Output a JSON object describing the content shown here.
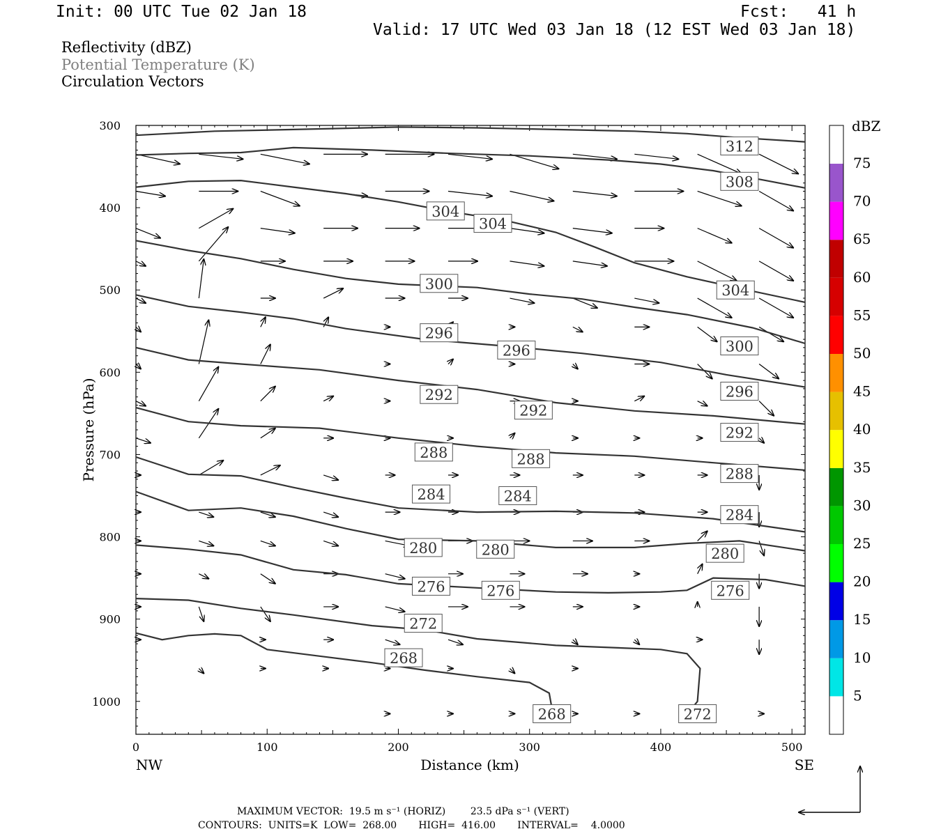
{
  "header": {
    "init": "Init: 00 UTC Tue 02 Jan 18",
    "fcst": "Fcst:   41 h",
    "valid": "Valid: 17 UTC Wed 03 Jan 18 (12 EST Wed 03 Jan 18)"
  },
  "legend": {
    "line1": "Reflectivity (dBZ)",
    "line2": "Potential Temperature (K)",
    "line3": "Circulation Vectors"
  },
  "footer": {
    "line1": "MAXIMUM VECTOR:  19.5 m s⁻¹ (HORIZ)        23.5 dPa s⁻¹ (VERT)",
    "line2": "CONTOURS:  UNITS=K  LOW=  268.00       HIGH=  416.00       INTERVAL=    4.0000"
  },
  "colors": {
    "contour": "#333333",
    "label_gray": "#808080",
    "frame": "#000000"
  },
  "chart_data": {
    "type": "line",
    "title": "",
    "xlabel": "Distance (km)",
    "ylabel": "Pressure (hPa)",
    "xlim": [
      0,
      510
    ],
    "ylim": [
      300,
      1040
    ],
    "y_inverted": true,
    "x_ticks": [
      0,
      100,
      200,
      300,
      400,
      500
    ],
    "y_ticks": [
      300,
      400,
      500,
      600,
      700,
      800,
      900,
      1000
    ],
    "x_end_labels": {
      "left": "NW",
      "right": "SE"
    },
    "colorbar": {
      "unit": "dBZ",
      "levels": [
        5,
        10,
        15,
        20,
        25,
        30,
        35,
        40,
        45,
        50,
        55,
        60,
        65,
        70,
        75
      ],
      "colors": [
        "#ffffff",
        "#00e6e6",
        "#0099e6",
        "#0000e6",
        "#00ff00",
        "#00c800",
        "#009600",
        "#ffff00",
        "#e6c000",
        "#ff9000",
        "#ff0000",
        "#d60000",
        "#c00000",
        "#ff00ff",
        "#9955cc",
        "#ffffff"
      ]
    },
    "contours": [
      {
        "name": "312",
        "points": [
          [
            0,
            312
          ],
          [
            60,
            307
          ],
          [
            120,
            305
          ],
          [
            200,
            302
          ],
          [
            260,
            303
          ],
          [
            320,
            305
          ],
          [
            380,
            307
          ],
          [
            420,
            310
          ],
          [
            460,
            315
          ],
          [
            510,
            320
          ]
        ],
        "labels": [
          [
            460,
            325
          ]
        ]
      },
      {
        "name": "308",
        "points": [
          [
            0,
            336
          ],
          [
            40,
            334
          ],
          [
            80,
            333
          ],
          [
            120,
            327
          ],
          [
            180,
            330
          ],
          [
            240,
            334
          ],
          [
            300,
            337
          ],
          [
            360,
            342
          ],
          [
            400,
            347
          ],
          [
            440,
            355
          ],
          [
            480,
            367
          ],
          [
            510,
            376
          ]
        ],
        "labels": [
          [
            460,
            368
          ]
        ]
      },
      {
        "name": "304",
        "points": [
          [
            0,
            375
          ],
          [
            40,
            368
          ],
          [
            80,
            367
          ],
          [
            120,
            375
          ],
          [
            160,
            383
          ],
          [
            200,
            393
          ],
          [
            240,
            405
          ],
          [
            280,
            415
          ],
          [
            320,
            430
          ],
          [
            350,
            448
          ],
          [
            380,
            467
          ],
          [
            420,
            484
          ],
          [
            460,
            498
          ],
          [
            510,
            515
          ]
        ],
        "labels": [
          [
            236,
            404
          ],
          [
            272,
            419
          ],
          [
            457,
            500
          ]
        ]
      },
      {
        "name": "300",
        "points": [
          [
            0,
            440
          ],
          [
            40,
            452
          ],
          [
            80,
            462
          ],
          [
            120,
            475
          ],
          [
            160,
            486
          ],
          [
            200,
            493
          ],
          [
            260,
            497
          ],
          [
            300,
            505
          ],
          [
            340,
            511
          ],
          [
            380,
            521
          ],
          [
            420,
            530
          ],
          [
            470,
            546
          ],
          [
            510,
            565
          ]
        ],
        "labels": [
          [
            231,
            492
          ],
          [
            460,
            568
          ]
        ]
      },
      {
        "name": "296",
        "points": [
          [
            0,
            506
          ],
          [
            40,
            520
          ],
          [
            80,
            527
          ],
          [
            120,
            535
          ],
          [
            160,
            547
          ],
          [
            220,
            560
          ],
          [
            280,
            568
          ],
          [
            340,
            577
          ],
          [
            400,
            588
          ],
          [
            450,
            603
          ],
          [
            510,
            618
          ]
        ],
        "labels": [
          [
            231,
            552
          ],
          [
            290,
            573
          ],
          [
            460,
            623
          ]
        ]
      },
      {
        "name": "292",
        "points": [
          [
            0,
            570
          ],
          [
            40,
            585
          ],
          [
            80,
            590
          ],
          [
            140,
            597
          ],
          [
            200,
            610
          ],
          [
            260,
            621
          ],
          [
            320,
            637
          ],
          [
            380,
            647
          ],
          [
            440,
            653
          ],
          [
            510,
            663
          ]
        ],
        "labels": [
          [
            231,
            627
          ],
          [
            303,
            646
          ],
          [
            460,
            673
          ]
        ]
      },
      {
        "name": "288",
        "points": [
          [
            0,
            643
          ],
          [
            40,
            660
          ],
          [
            80,
            665
          ],
          [
            140,
            668
          ],
          [
            200,
            680
          ],
          [
            260,
            690
          ],
          [
            320,
            698
          ],
          [
            380,
            702
          ],
          [
            440,
            710
          ],
          [
            510,
            719
          ]
        ],
        "labels": [
          [
            227,
            697
          ],
          [
            301,
            705
          ],
          [
            460,
            723
          ]
        ]
      },
      {
        "name": "284",
        "points": [
          [
            0,
            703
          ],
          [
            40,
            724
          ],
          [
            80,
            726
          ],
          [
            120,
            740
          ],
          [
            160,
            753
          ],
          [
            200,
            765
          ],
          [
            260,
            770
          ],
          [
            320,
            769
          ],
          [
            380,
            771
          ],
          [
            440,
            778
          ],
          [
            510,
            794
          ]
        ],
        "labels": [
          [
            225,
            748
          ],
          [
            291,
            750
          ],
          [
            460,
            773
          ]
        ]
      },
      {
        "name": "280",
        "points": [
          [
            0,
            745
          ],
          [
            40,
            768
          ],
          [
            80,
            765
          ],
          [
            120,
            775
          ],
          [
            160,
            790
          ],
          [
            200,
            803
          ],
          [
            260,
            805
          ],
          [
            320,
            813
          ],
          [
            380,
            813
          ],
          [
            420,
            808
          ],
          [
            460,
            805
          ],
          [
            510,
            817
          ]
        ],
        "labels": [
          [
            219,
            813
          ],
          [
            274,
            815
          ],
          [
            449,
            820
          ]
        ]
      },
      {
        "name": "276",
        "points": [
          [
            0,
            810
          ],
          [
            40,
            815
          ],
          [
            80,
            822
          ],
          [
            120,
            840
          ],
          [
            160,
            846
          ],
          [
            200,
            857
          ],
          [
            260,
            862
          ],
          [
            320,
            867
          ],
          [
            360,
            868
          ],
          [
            400,
            867
          ],
          [
            420,
            865
          ],
          [
            440,
            850
          ],
          [
            480,
            852
          ],
          [
            510,
            860
          ]
        ],
        "labels": [
          [
            225,
            860
          ],
          [
            278,
            865
          ],
          [
            453,
            865
          ]
        ]
      },
      {
        "name": "272",
        "points": [
          [
            0,
            875
          ],
          [
            40,
            877
          ],
          [
            80,
            887
          ],
          [
            120,
            895
          ],
          [
            180,
            908
          ],
          [
            220,
            913
          ],
          [
            260,
            924
          ],
          [
            320,
            932
          ],
          [
            400,
            937
          ],
          [
            420,
            942
          ],
          [
            430,
            960
          ],
          [
            428,
            1000
          ],
          [
            424,
            1008
          ]
        ],
        "labels": [
          [
            219,
            905
          ],
          [
            428,
            1015
          ]
        ]
      },
      {
        "name": "268",
        "points": [
          [
            0,
            917
          ],
          [
            20,
            925
          ],
          [
            40,
            920
          ],
          [
            60,
            918
          ],
          [
            80,
            920
          ],
          [
            100,
            937
          ],
          [
            140,
            945
          ],
          [
            180,
            953
          ],
          [
            220,
            962
          ],
          [
            260,
            970
          ],
          [
            300,
            977
          ],
          [
            315,
            990
          ],
          [
            317,
            1008
          ]
        ],
        "labels": [
          [
            204,
            947
          ],
          [
            317,
            1015
          ]
        ]
      }
    ]
  }
}
